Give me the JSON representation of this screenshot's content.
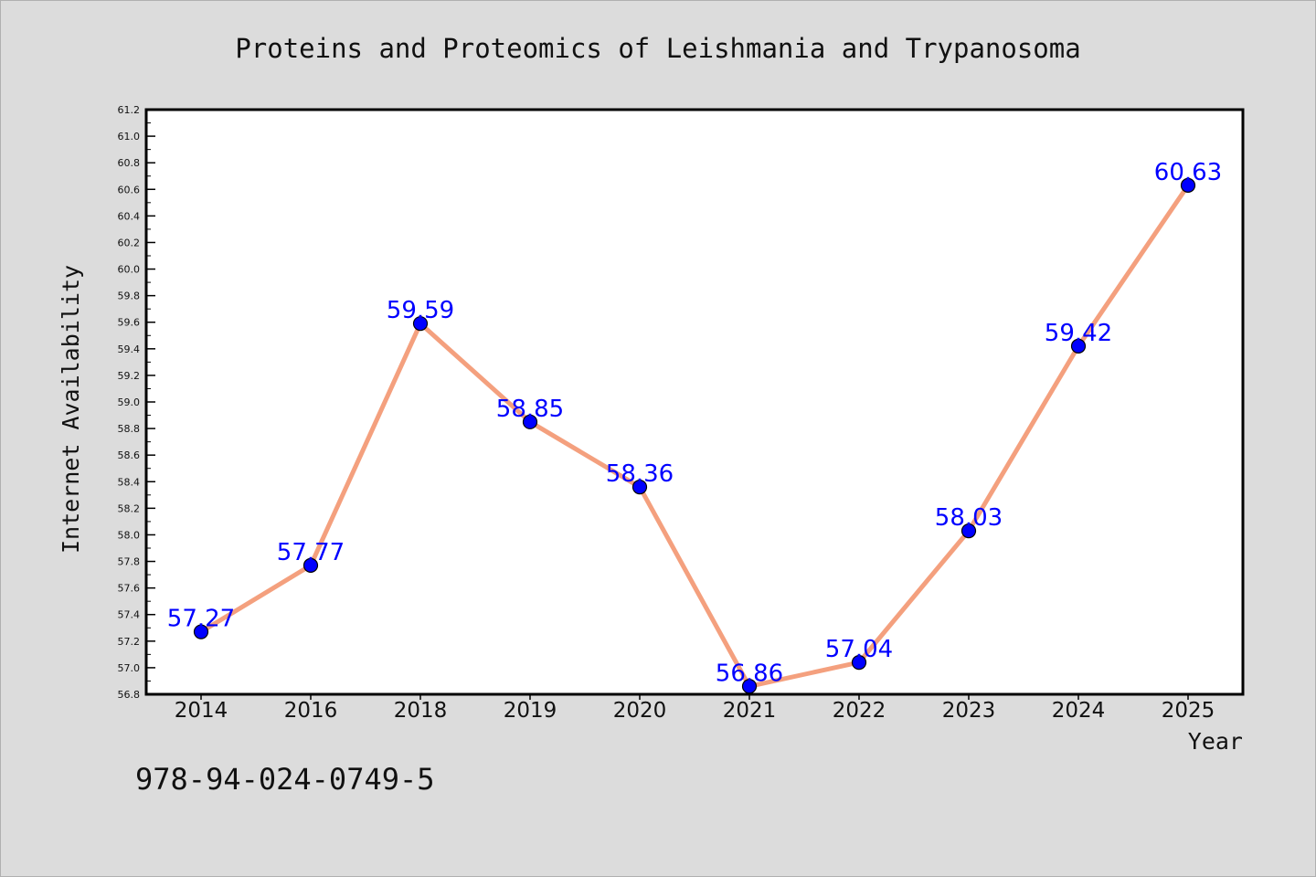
{
  "chart_data": {
    "type": "line",
    "title": "Proteins and Proteomics of Leishmania and Trypanosoma",
    "xlabel": "Year",
    "ylabel": "Internet Availability",
    "categories": [
      "2014",
      "2016",
      "2018",
      "2019",
      "2020",
      "2021",
      "2022",
      "2023",
      "2024",
      "2025"
    ],
    "series": [
      {
        "values": [
          57.27,
          57.77,
          59.59,
          58.85,
          58.36,
          56.86,
          57.04,
          58.03,
          59.42,
          60.63
        ],
        "labels": [
          "57.27",
          "57.77",
          "59.59",
          "58.85",
          "58.36",
          "56.86",
          "57.04",
          "58.03",
          "59.42",
          "60.63"
        ]
      }
    ],
    "ylim": [
      56.8,
      61.2
    ],
    "yticks": [
      "56.8",
      "57.0",
      "57.2",
      "57.4",
      "57.6",
      "57.8",
      "58.0",
      "58.2",
      "58.4",
      "58.6",
      "58.8",
      "59.0",
      "59.2",
      "59.4",
      "59.6",
      "59.8",
      "60.0",
      "60.2",
      "60.4",
      "60.6",
      "60.8",
      "61.0",
      "61.2"
    ],
    "grid": false,
    "colors": {
      "line": "#f4a07e",
      "marker": "#0000ff",
      "marker_edge": "#000000",
      "data_label": "#0000ff",
      "background": "#dcdcdc",
      "plot_background": "#ffffff"
    }
  },
  "footer": {
    "isbn": "978-94-024-0749-5"
  }
}
